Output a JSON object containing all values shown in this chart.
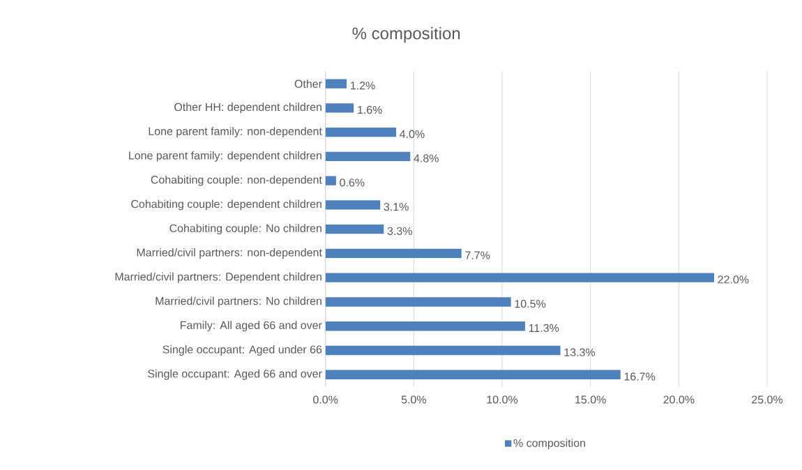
{
  "chart_data": {
    "type": "bar",
    "orientation": "horizontal",
    "title": "% composition",
    "categories": [
      "Other",
      "Other HH: dependent children",
      "Lone parent family: non-dependent",
      "Lone parent family: dependent children",
      "Cohabiting couple: non-dependent",
      "Cohabiting couple: dependent children",
      "Cohabiting couple: No children",
      "Married/civil partners: non-dependent",
      "Married/civil partners: Dependent children",
      "Married/civil partners: No children",
      "Family: All aged 66 and over",
      "Single occupant: Aged under 66",
      "Single occupant: Aged 66 and over"
    ],
    "series": [
      {
        "name": "% composition",
        "color": "#4f81bd",
        "values": [
          1.2,
          1.6,
          4.0,
          4.8,
          0.6,
          3.1,
          3.3,
          7.7,
          22.0,
          10.5,
          11.3,
          13.3,
          16.7
        ],
        "value_labels": [
          "1.2%",
          "1.6%",
          "4.0%",
          "4.8%",
          "0.6%",
          "3.1%",
          "3.3%",
          "7.7%",
          "22.0%",
          "10.5%",
          "11.3%",
          "13.3%",
          "16.7%"
        ]
      }
    ],
    "xlim": [
      0,
      25
    ],
    "xticks": [
      {
        "value": 0,
        "label": "0.0%"
      },
      {
        "value": 5,
        "label": "5.0%"
      },
      {
        "value": 10,
        "label": "10.0%"
      },
      {
        "value": 15,
        "label": "15.0%"
      },
      {
        "value": 20,
        "label": "20.0%"
      },
      {
        "value": 25,
        "label": "25.0%"
      }
    ],
    "grid": "x",
    "legend": "bottom"
  }
}
